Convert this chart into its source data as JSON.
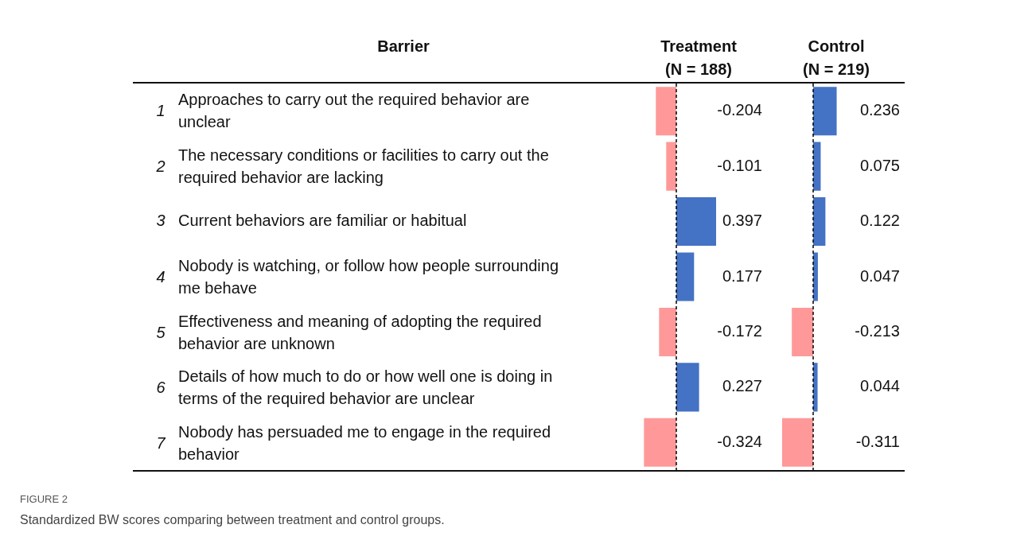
{
  "chart_data": [
    {
      "type": "bar",
      "orientation": "horizontal",
      "title": "Treatment",
      "subtitle": "(N = 188)",
      "ylabel": "Barrier",
      "categories": [
        "1 Approaches to carry out the required behavior are unclear",
        "2 The necessary conditions or facilities to carry out the required behavior are lacking",
        "3 Current behaviors are familiar or habitual",
        "4 Nobody is watching, or follow how people surrounding me behave",
        "5 Effectiveness and meaning of adopting the required behavior are unknown",
        "6 Details of how much to do or how well one is doing in terms of the required behavior are unclear",
        "7 Nobody has persuaded me to engage in the required behavior"
      ],
      "values": [
        -0.204,
        -0.101,
        0.397,
        0.177,
        -0.172,
        0.227,
        -0.324
      ],
      "colors": [
        "#ff9999",
        "#ff9999",
        "#4472c4",
        "#4472c4",
        "#ff9999",
        "#4472c4",
        "#ff9999"
      ],
      "data_labels": true,
      "legend": false,
      "ref_lines": [
        {
          "axis": "x",
          "value": 0,
          "color": "#000000",
          "line_style": "dashed"
        }
      ],
      "annotations": [
        "FIGURE 2",
        "Standardized BW scores comparing between treatment and control groups."
      ]
    },
    {
      "type": "bar",
      "orientation": "horizontal",
      "title": "Control",
      "subtitle": "(N = 219)",
      "categories": [
        null,
        null,
        null,
        null,
        null,
        null,
        null
      ],
      "values": [
        0.236,
        0.075,
        0.122,
        0.047,
        -0.213,
        0.044,
        -0.311
      ],
      "colors": [
        "#4472c4",
        "#4472c4",
        "#4472c4",
        "#4472c4",
        "#ff9999",
        "#4472c4",
        "#ff9999"
      ],
      "data_labels": true,
      "legend": false,
      "ref_lines": [
        {
          "axis": "x",
          "value": 0,
          "color": "#000000",
          "line_style": "dashed"
        }
      ]
    }
  ]
}
